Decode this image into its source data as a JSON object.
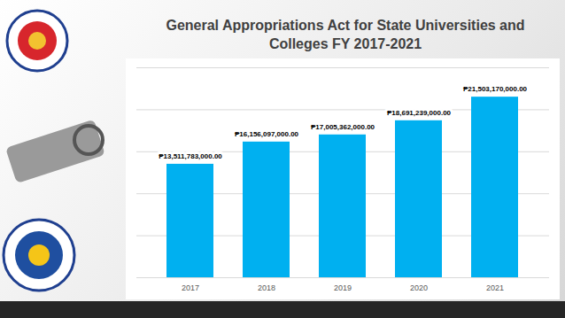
{
  "chart_data": {
    "type": "bar",
    "title": "General Appropriations Act for State Universities and Colleges FY 2017-2021",
    "categories": [
      "2017",
      "2018",
      "2019",
      "2020",
      "2021"
    ],
    "values": [
      13511783000,
      16156097000,
      17005362000,
      18691239000,
      21503170000
    ],
    "value_labels": [
      "₱13,511,783,000.00",
      "₱16,156,097,000.00",
      "₱17,005,362,000.00",
      "₱18,691,239,000.00",
      "₱21,503,170,000.00"
    ],
    "color": "#00b0f0",
    "ylim": [
      0,
      25000000000
    ],
    "yticks": [
      0,
      5000000000,
      10000000000,
      15000000000,
      20000000000,
      25000000000
    ],
    "grid": true,
    "data_labels": true,
    "tick_labels": "x"
  }
}
